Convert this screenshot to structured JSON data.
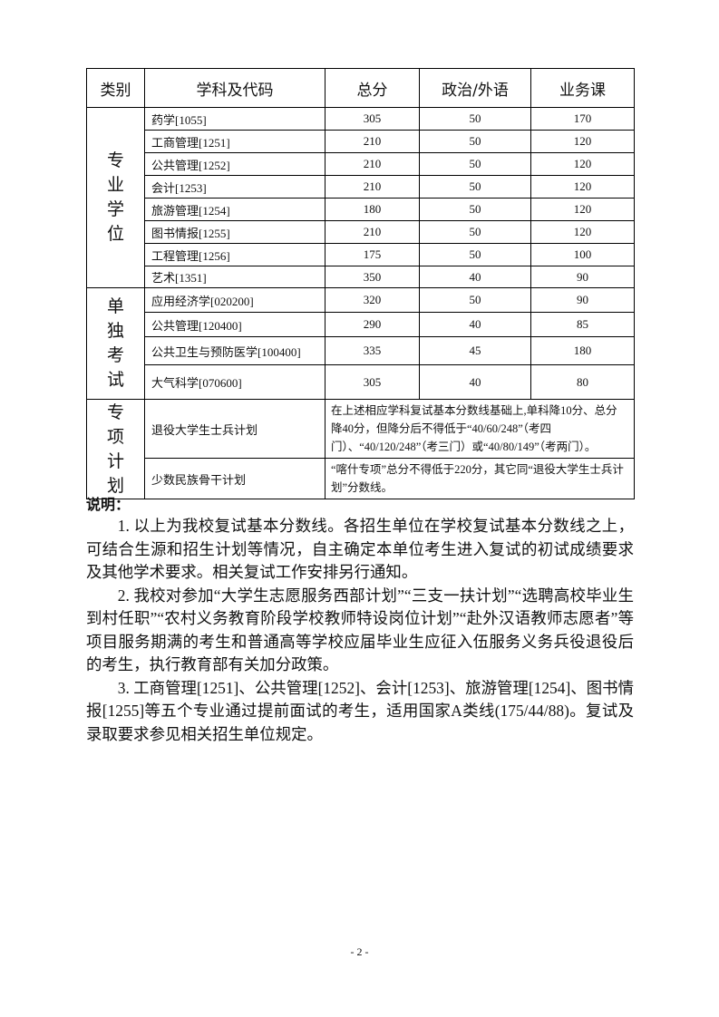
{
  "table": {
    "headers": [
      "类别",
      "学科及代码",
      "总分",
      "政治/外语",
      "业务课"
    ],
    "groups": [
      {
        "category": [
          "专",
          "业",
          "学",
          "位"
        ],
        "rows": [
          [
            "药学[1055]",
            "305",
            "50",
            "170"
          ],
          [
            "工商管理[1251]",
            "210",
            "50",
            "120"
          ],
          [
            "公共管理[1252]",
            "210",
            "50",
            "120"
          ],
          [
            "会计[1253]",
            "210",
            "50",
            "120"
          ],
          [
            "旅游管理[1254]",
            "180",
            "50",
            "120"
          ],
          [
            "图书情报[1255]",
            "210",
            "50",
            "120"
          ],
          [
            "工程管理[1256]",
            "175",
            "50",
            "100"
          ],
          [
            "艺术[1351]",
            "350",
            "40",
            "90"
          ]
        ]
      },
      {
        "category": [
          "单",
          "独",
          "考",
          "试"
        ],
        "rows": [
          [
            "应用经济学[020200]",
            "320",
            "50",
            "90"
          ],
          [
            "公共管理[120400]",
            "290",
            "40",
            "85"
          ],
          [
            "公共卫生与预防医学[100400]",
            "335",
            "45",
            "180"
          ],
          [
            "大气科学[070600]",
            "305",
            "40",
            "80"
          ]
        ]
      },
      {
        "category": [
          "专",
          "项",
          "计",
          "划"
        ],
        "rows": [
          [
            "退役大学生士兵计划",
            "在上述相应学科复试基本分数线基础上,单科降10分、总分降40分，但降分后不得低于“40/60/248”（考四门）、“40/120/248”（考三门）或“40/80/149”（考两门）。"
          ],
          [
            "少数民族骨干计划",
            "“喀什专项”总分不得低于220分，其它同“退役大学生士兵计划”分数线。"
          ]
        ]
      }
    ]
  },
  "notes": {
    "heading": "说明：",
    "items": [
      "1. 以上为我校复试基本分数线。各招生单位在学校复试基本分数线之上，可结合生源和招生计划等情况，自主确定本单位考生进入复试的初试成绩要求及其他学术要求。相关复试工作安排另行通知。",
      "2. 我校对参加“大学生志愿服务西部计划”“三支一扶计划”“选聘高校毕业生到村任职”“农村义务教育阶段学校教师特设岗位计划”“赴外汉语教师志愿者”等项目服务期满的考生和普通高等学校应届毕业生应征入伍服务义务兵役退役后的考生，执行教育部有关加分政策。",
      "3. 工商管理[1251]、公共管理[1252]、会计[1253]、旅游管理[1254]、图书情报[1255]等五个专业通过提前面试的考生，适用国家A类线(175/44/88)。复试及录取要求参见相关招生单位规定。"
    ]
  },
  "page_number": "- 2 -"
}
